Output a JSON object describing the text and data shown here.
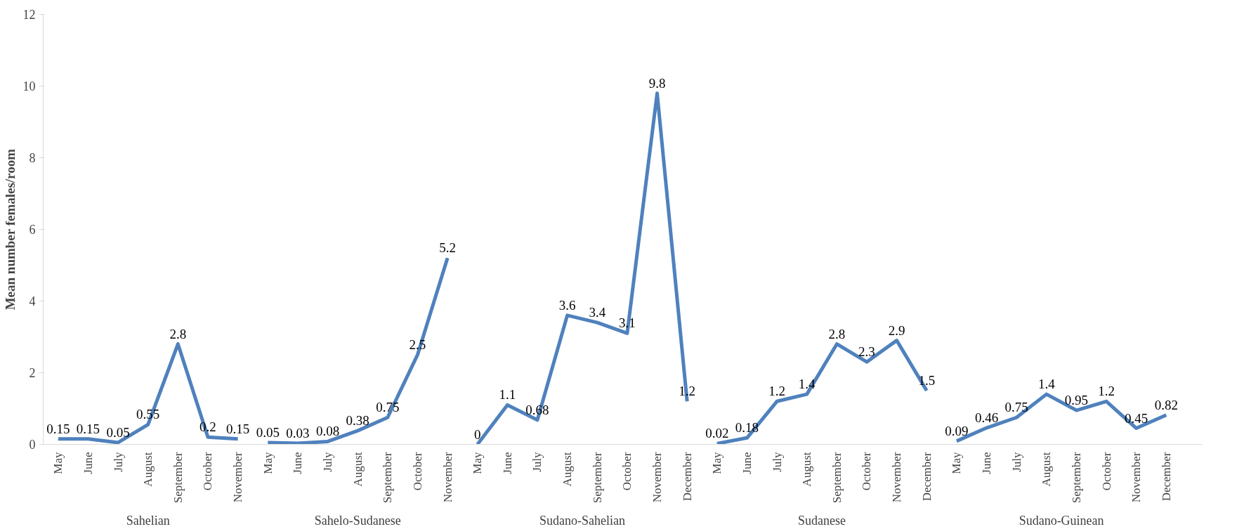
{
  "chart_data": {
    "type": "line",
    "ylabel": "Mean number females/room",
    "categories": [
      "May",
      "June",
      "July",
      "August",
      "September",
      "October",
      "November",
      "May",
      "June",
      "July",
      "August",
      "September",
      "October",
      "November",
      "May",
      "June",
      "July",
      "August",
      "September",
      "October",
      "November",
      "December",
      "May",
      "June",
      "July",
      "August",
      "September",
      "October",
      "November",
      "December",
      "May",
      "June",
      "July",
      "August",
      "September",
      "October",
      "November",
      "December"
    ],
    "series": [
      {
        "color": "#4f81bd",
        "values": [
          0.15,
          0.15,
          0.05,
          0.55,
          2.8,
          0.2,
          0.15,
          null,
          null,
          null,
          null,
          null,
          null,
          null,
          null,
          null,
          null,
          null,
          null,
          null,
          null,
          null,
          null,
          null,
          null,
          null,
          null,
          null,
          null,
          null,
          null,
          null,
          null,
          null,
          null,
          null,
          null,
          null
        ]
      },
      {
        "color": "#4f81bd",
        "values": [
          null,
          null,
          null,
          null,
          null,
          null,
          null,
          0.05,
          0.03,
          0.08,
          0.38,
          0.75,
          2.5,
          5.2,
          null,
          null,
          null,
          null,
          null,
          null,
          null,
          null,
          null,
          null,
          null,
          null,
          null,
          null,
          null,
          null,
          null,
          null,
          null,
          null,
          null,
          null,
          null,
          null
        ]
      },
      {
        "color": "#4f81bd",
        "values": [
          null,
          null,
          null,
          null,
          null,
          null,
          null,
          null,
          null,
          null,
          null,
          null,
          null,
          null,
          0,
          1.1,
          0.68,
          3.6,
          3.4,
          3.1,
          9.8,
          1.2,
          null,
          null,
          null,
          null,
          null,
          null,
          null,
          null,
          null,
          null,
          null,
          null,
          null,
          null,
          null,
          null
        ]
      },
      {
        "color": "#4f81bd",
        "values": [
          null,
          null,
          null,
          null,
          null,
          null,
          null,
          null,
          null,
          null,
          null,
          null,
          null,
          null,
          null,
          null,
          null,
          null,
          null,
          null,
          null,
          null,
          0.02,
          0.18,
          1.2,
          1.4,
          2.8,
          2.3,
          2.9,
          1.5,
          null,
          null,
          null,
          null,
          null,
          null,
          null,
          null
        ]
      },
      {
        "color": "#4f81bd",
        "values": [
          null,
          null,
          null,
          null,
          null,
          null,
          null,
          null,
          null,
          null,
          null,
          null,
          null,
          null,
          null,
          null,
          null,
          null,
          null,
          null,
          null,
          null,
          null,
          null,
          null,
          null,
          null,
          null,
          null,
          null,
          0.09,
          0.46,
          0.75,
          1.4,
          0.95,
          1.2,
          0.45,
          0.82
        ]
      }
    ],
    "ylim": [
      0,
      12
    ],
    "yticks": [
      0,
      2,
      4,
      6,
      8,
      10,
      12
    ],
    "annotations": [
      "Sahelian",
      "Sahelo-Sudanese",
      "Sudano-Sahelian",
      "Sudanese",
      "Sudano-Guinean"
    ],
    "data_labels": true,
    "grid": false,
    "line_style": "solid",
    "marker": "none"
  }
}
